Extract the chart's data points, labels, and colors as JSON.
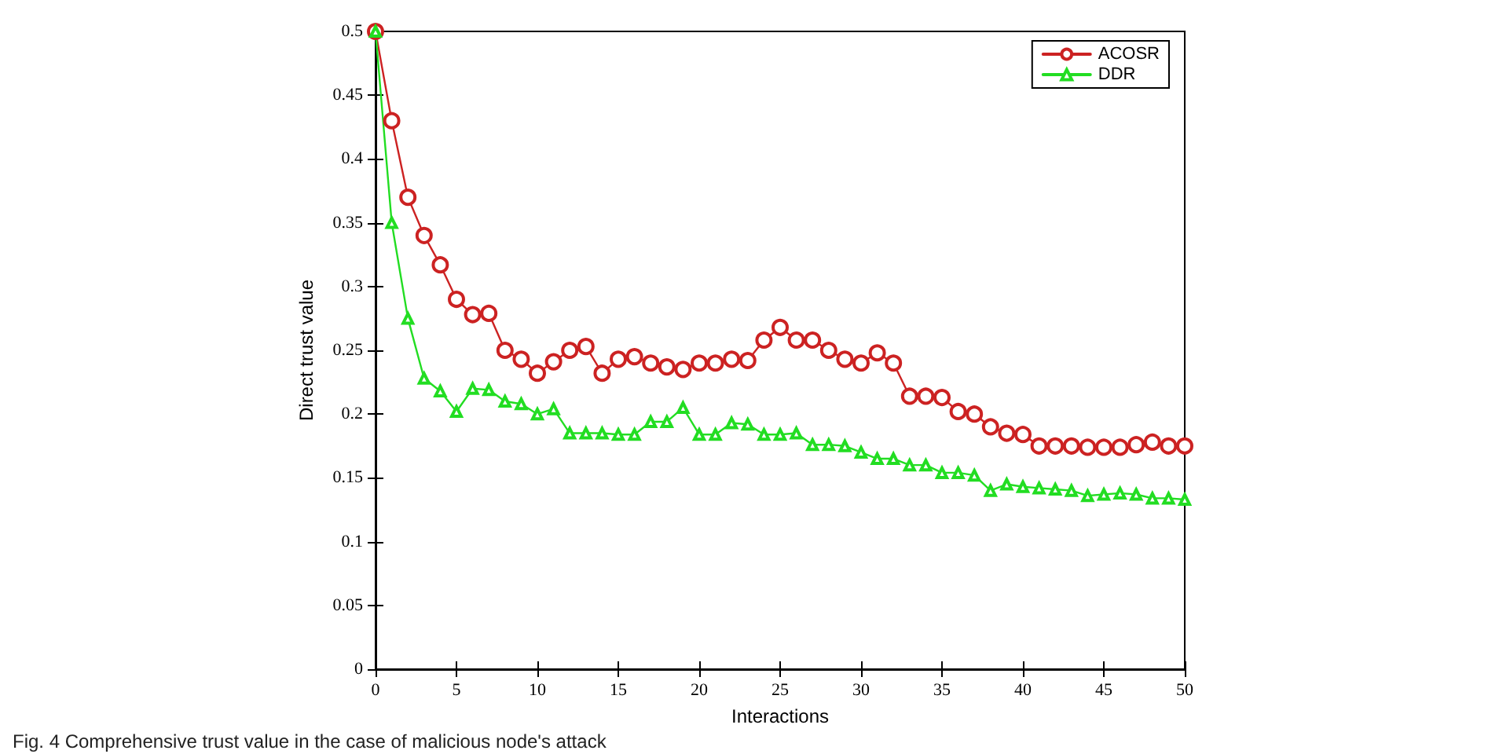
{
  "chart_data": {
    "type": "line",
    "xlabel": "Interactions",
    "ylabel": "Direct trust value",
    "annotations": [
      "Fig. 4 Comprehensive trust value in the case of malicious node's attack"
    ],
    "x": [
      0,
      1,
      2,
      3,
      4,
      5,
      6,
      7,
      8,
      9,
      10,
      11,
      12,
      13,
      14,
      15,
      16,
      17,
      18,
      19,
      20,
      21,
      22,
      23,
      24,
      25,
      26,
      27,
      28,
      29,
      30,
      31,
      32,
      33,
      34,
      35,
      36,
      37,
      38,
      39,
      40,
      41,
      42,
      43,
      44,
      45,
      46,
      47,
      48,
      49,
      50
    ],
    "series": [
      {
        "name": "ACOSR",
        "color": "#cc2222",
        "marker": "circle",
        "values": [
          0.5,
          0.43,
          0.37,
          0.34,
          0.317,
          0.29,
          0.278,
          0.279,
          0.25,
          0.243,
          0.232,
          0.241,
          0.25,
          0.253,
          0.232,
          0.243,
          0.245,
          0.24,
          0.237,
          0.235,
          0.24,
          0.24,
          0.243,
          0.242,
          0.258,
          0.268,
          0.258,
          0.258,
          0.25,
          0.243,
          0.24,
          0.248,
          0.24,
          0.214,
          0.214,
          0.213,
          0.202,
          0.2,
          0.19,
          0.185,
          0.184,
          0.175,
          0.175,
          0.175,
          0.174,
          0.174,
          0.174,
          0.176,
          0.178,
          0.175,
          0.175
        ]
      },
      {
        "name": "DDR",
        "color": "#22dd22",
        "marker": "triangle",
        "values": [
          0.5,
          0.35,
          0.275,
          0.228,
          0.218,
          0.202,
          0.22,
          0.219,
          0.21,
          0.208,
          0.2,
          0.204,
          0.185,
          0.185,
          0.185,
          0.184,
          0.184,
          0.194,
          0.194,
          0.205,
          0.184,
          0.184,
          0.193,
          0.192,
          0.184,
          0.184,
          0.185,
          0.176,
          0.176,
          0.175,
          0.17,
          0.165,
          0.165,
          0.16,
          0.16,
          0.154,
          0.154,
          0.152,
          0.14,
          0.145,
          0.143,
          0.142,
          0.141,
          0.14,
          0.136,
          0.137,
          0.138,
          0.137,
          0.134,
          0.134,
          0.133
        ]
      }
    ],
    "xlim": [
      0,
      50
    ],
    "xticks": [
      0,
      5,
      10,
      15,
      20,
      25,
      30,
      35,
      40,
      45,
      50
    ],
    "ylim": [
      0,
      0.5
    ],
    "yticks": [
      0,
      0.05,
      0.1,
      0.15,
      0.2,
      0.25,
      0.3,
      0.35,
      0.4,
      0.45,
      0.5
    ],
    "grid": false,
    "legend": "top right",
    "line_style": "solid"
  }
}
